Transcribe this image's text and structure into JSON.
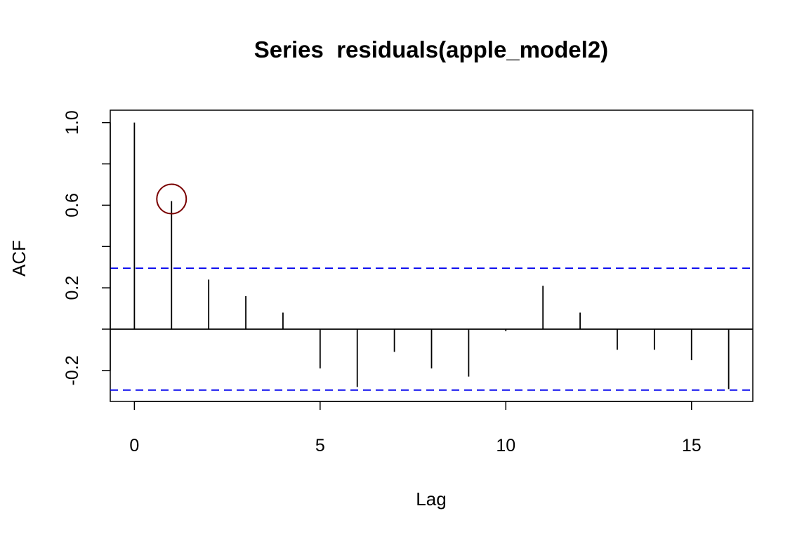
{
  "chart_data": {
    "type": "bar",
    "title": "Series  residuals(apple_model2)",
    "xlabel": "Lag",
    "ylabel": "ACF",
    "xlim": [
      -0.65,
      16.65
    ],
    "ylim": [
      -0.35,
      1.06
    ],
    "xticks": [
      0,
      5,
      10,
      15
    ],
    "yticks": [
      -0.2,
      0.2,
      0.6,
      1.0
    ],
    "yticks_minor": [
      -0.2,
      0.0,
      0.2,
      0.4,
      0.6,
      0.8,
      1.0
    ],
    "ytick_labels": [
      "-0.2",
      "0.2",
      "0.6",
      "1.0"
    ],
    "lags": [
      0,
      1,
      2,
      3,
      4,
      5,
      6,
      7,
      8,
      9,
      10,
      11,
      12,
      13,
      14,
      15,
      16
    ],
    "acf": [
      1.0,
      0.62,
      0.24,
      0.16,
      0.08,
      -0.19,
      -0.28,
      -0.11,
      -0.19,
      -0.23,
      -0.01,
      0.21,
      0.08,
      -0.1,
      -0.1,
      -0.15,
      -0.29
    ],
    "confidence_bound": 0.295,
    "grid": false,
    "colors": {
      "bars": "#000000",
      "confidence_lines": "#0000ee",
      "highlight_circle": "#7a0000"
    },
    "annotations": [
      {
        "type": "circle",
        "lag": 1,
        "value": 0.63
      }
    ]
  }
}
